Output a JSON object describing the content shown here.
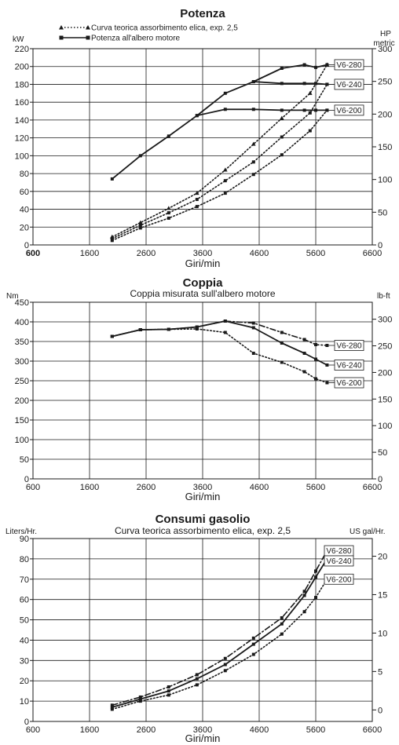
{
  "chart_data": [
    {
      "type": "line",
      "title": "Potenza",
      "xlabel": "Giri/min",
      "ylabel": "kW",
      "y2label": "HP metric",
      "xlim": [
        600,
        6600
      ],
      "ylim": [
        0,
        220
      ],
      "y2lim": [
        0,
        300
      ],
      "grid": true,
      "x_ticks": [
        600,
        1600,
        2600,
        3600,
        4600,
        5600,
        6600
      ],
      "y_ticks": [
        0,
        20,
        40,
        60,
        80,
        100,
        120,
        140,
        160,
        180,
        200,
        220
      ],
      "y2_ticks": [
        0,
        50,
        100,
        150,
        200,
        250,
        300
      ],
      "legend": [
        {
          "label": "Curva teorica assorbimento elica, exp. 2,5",
          "style": "dotted-triangle"
        },
        {
          "label": "Potenza all'albero motore",
          "style": "solid-square"
        }
      ],
      "legend_position": "top-left",
      "series": [
        {
          "name": "V6-280",
          "kind": "propeller",
          "style": "dotted",
          "marker": "triangle",
          "x": [
            2000,
            2500,
            3000,
            3500,
            4000,
            4500,
            5000,
            5500,
            5800
          ],
          "y": [
            9,
            25,
            41,
            58,
            84,
            113,
            142,
            170,
            202
          ]
        },
        {
          "name": "V6-240",
          "kind": "propeller",
          "style": "dotted",
          "marker": "square",
          "x": [
            2000,
            2500,
            3000,
            3500,
            4000,
            4500,
            5000,
            5500,
            5800
          ],
          "y": [
            7,
            22,
            36,
            51,
            72,
            93,
            121,
            148,
            180
          ]
        },
        {
          "name": "V6-200",
          "kind": "propeller",
          "style": "dotted",
          "marker": "square",
          "x": [
            2000,
            2500,
            3000,
            3500,
            4000,
            4500,
            5000,
            5500,
            5800
          ],
          "y": [
            5,
            19,
            30,
            43,
            58,
            79,
            101,
            128,
            151
          ]
        },
        {
          "name": "V6-280",
          "kind": "shaft",
          "style": "solid",
          "marker": "square",
          "x": [
            2000,
            2500,
            3000,
            3500,
            4000,
            4500,
            5000,
            5400,
            5600,
            5800
          ],
          "y": [
            74,
            100,
            122,
            145,
            170,
            183,
            198,
            202,
            199,
            202
          ]
        },
        {
          "name": "V6-240",
          "kind": "shaft",
          "style": "solid",
          "marker": "square",
          "x": [
            4500,
            5000,
            5400,
            5600,
            5800
          ],
          "y": [
            183,
            181,
            181,
            181,
            180
          ]
        },
        {
          "name": "V6-200",
          "kind": "shaft",
          "style": "solid",
          "marker": "square",
          "x": [
            3500,
            4000,
            4500,
            5000,
            5400,
            5600,
            5800
          ],
          "y": [
            145,
            152,
            152,
            151,
            151,
            151,
            151
          ]
        }
      ],
      "end_labels": [
        {
          "text": "V6-280",
          "y": 202
        },
        {
          "text": "V6-240",
          "y": 180
        },
        {
          "text": "V6-200",
          "y": 151
        }
      ]
    },
    {
      "type": "line",
      "title": "Coppia",
      "subtitle": "Coppia misurata sull'albero motore",
      "xlabel": "Giri/min",
      "ylabel": "Nm",
      "y2label": "lb-ft",
      "xlim": [
        600,
        6600
      ],
      "ylim": [
        0,
        450
      ],
      "y2lim": [
        0,
        331.9
      ],
      "grid": true,
      "x_ticks": [
        600,
        1600,
        2600,
        3600,
        4600,
        5600,
        6600
      ],
      "y_ticks": [
        0,
        50,
        100,
        150,
        200,
        250,
        300,
        350,
        400,
        450
      ],
      "y2_ticks": [
        0,
        50,
        100,
        150,
        200,
        250,
        300
      ],
      "series": [
        {
          "name": "V6-280",
          "style": "dashdot",
          "marker": "square",
          "x": [
            2000,
            2500,
            3000,
            3500,
            4000,
            4500,
            5000,
            5400,
            5600,
            5800
          ],
          "y": [
            363,
            380,
            381,
            387,
            402,
            397,
            373,
            355,
            342,
            340
          ]
        },
        {
          "name": "V6-240",
          "style": "solid",
          "marker": "square",
          "x": [
            2000,
            2500,
            3000,
            3500,
            4000,
            4500,
            5000,
            5400,
            5600,
            5800
          ],
          "y": [
            363,
            380,
            381,
            387,
            402,
            385,
            346,
            320,
            305,
            290
          ]
        },
        {
          "name": "V6-200",
          "style": "dotted",
          "marker": "square",
          "x": [
            2000,
            2500,
            3000,
            3500,
            4000,
            4500,
            5000,
            5400,
            5600,
            5800
          ],
          "y": [
            363,
            380,
            381,
            382,
            373,
            320,
            297,
            273,
            255,
            245
          ]
        }
      ],
      "end_labels": [
        {
          "text": "V6-280",
          "y": 340
        },
        {
          "text": "V6-240",
          "y": 290
        },
        {
          "text": "V6-200",
          "y": 245
        }
      ]
    },
    {
      "type": "line",
      "title": "Consumi gasolio",
      "subtitle": "Curva teorica assorbimento elica, exp. 2,5",
      "xlabel": "Giri/min",
      "ylabel": "Liters/Hr.",
      "y2label": "US gal/Hr.",
      "xlim": [
        600,
        6600
      ],
      "ylim": [
        0,
        90
      ],
      "y2lim": [
        -1.5,
        22.3
      ],
      "grid": true,
      "x_ticks": [
        600,
        1600,
        2600,
        3600,
        4600,
        5600,
        6600
      ],
      "y_ticks": [
        0,
        10,
        20,
        30,
        40,
        50,
        60,
        70,
        80,
        90
      ],
      "y2_ticks": [
        0,
        5,
        10,
        15,
        20
      ],
      "series": [
        {
          "name": "V6-280",
          "style": "dashdot",
          "marker": "square",
          "x": [
            2000,
            2500,
            3000,
            3500,
            4000,
            4500,
            5000,
            5400,
            5600,
            5800
          ],
          "y": [
            8,
            12,
            17,
            23,
            31,
            41,
            51,
            64,
            74,
            84
          ]
        },
        {
          "name": "V6-240",
          "style": "solid",
          "marker": "square",
          "x": [
            2000,
            2500,
            3000,
            3500,
            4000,
            4500,
            5000,
            5400,
            5600,
            5800
          ],
          "y": [
            7,
            11,
            15,
            21,
            28,
            38,
            48,
            62,
            71,
            80
          ]
        },
        {
          "name": "V6-200",
          "style": "dotted",
          "marker": "square",
          "x": [
            2000,
            2500,
            3000,
            3500,
            4000,
            4500,
            5000,
            5400,
            5600,
            5800
          ],
          "y": [
            6,
            10,
            13,
            18,
            25,
            33,
            43,
            54,
            61,
            70
          ]
        }
      ],
      "end_labels": [
        {
          "text": "V6-280",
          "y": 84
        },
        {
          "text": "V6-240",
          "y": 79
        },
        {
          "text": "V6-200",
          "y": 70
        }
      ]
    }
  ]
}
